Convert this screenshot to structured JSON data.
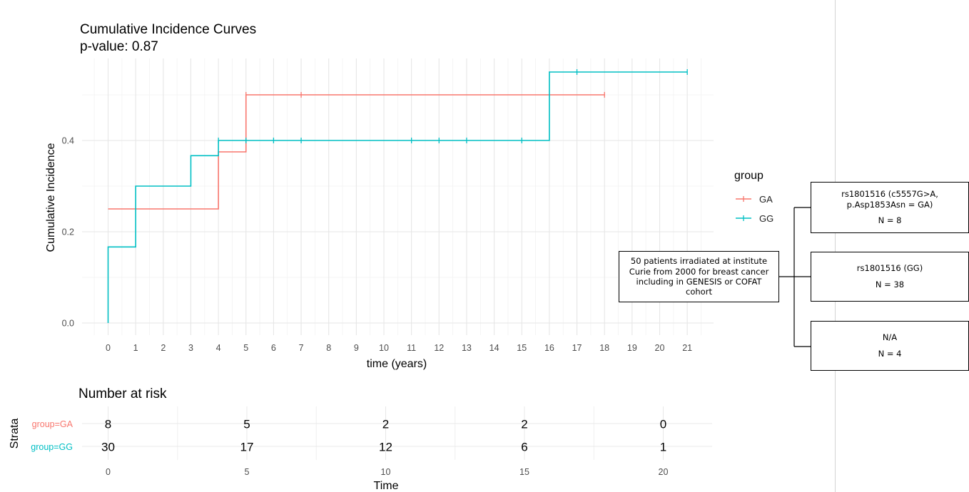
{
  "chart_data": [
    {
      "type": "line",
      "subtype": "step",
      "title": "Cumulative Incidence Curves",
      "subtitle": "p-value: 0.87",
      "xlabel": "time (years)",
      "ylabel": "Cumulative Incidence",
      "xlim": [
        0,
        21
      ],
      "ylim": [
        0,
        0.55
      ],
      "x_ticks": [
        "0",
        "1",
        "2",
        "3",
        "4",
        "5",
        "6",
        "7",
        "8",
        "9",
        "10",
        "11",
        "12",
        "13",
        "14",
        "15",
        "16",
        "17",
        "18",
        "19",
        "20",
        "21"
      ],
      "y_ticks": [
        "0.0",
        "0.2",
        "0.4"
      ],
      "grid": true,
      "legend": {
        "title": "group",
        "position": "right",
        "entries": [
          "GA",
          "GG"
        ]
      },
      "series": [
        {
          "name": "GA",
          "color": "#F8766D",
          "steps": [
            [
              0,
              0.25
            ],
            [
              4,
              0.375
            ],
            [
              5,
              0.5
            ],
            [
              18,
              0.5
            ]
          ],
          "censor_x": [
            5,
            7,
            18
          ],
          "censor_y": [
            0.5,
            0.5,
            0.5
          ]
        },
        {
          "name": "GG",
          "color": "#00BFC4",
          "start": [
            0,
            0.0
          ],
          "steps": [
            [
              0,
              0.1667
            ],
            [
              1,
              0.3
            ],
            [
              3,
              0.3667
            ],
            [
              4,
              0.4
            ],
            [
              16,
              0.55
            ],
            [
              21,
              0.55
            ]
          ],
          "censor_x": [
            4,
            5,
            6,
            7,
            11,
            12,
            13,
            15,
            17,
            21
          ],
          "censor_y": [
            0.4,
            0.4,
            0.4,
            0.4,
            0.4,
            0.4,
            0.4,
            0.4,
            0.55,
            0.55
          ]
        }
      ]
    },
    {
      "type": "table",
      "title": "Number at risk",
      "ylabel": "Strata",
      "xlabel": "Time",
      "x_ticks": [
        "0",
        "5",
        "10",
        "15",
        "20"
      ],
      "time_points": [
        0,
        5,
        10,
        15,
        20
      ],
      "rows": [
        {
          "label": "group=GA",
          "color": "#F8766D",
          "values": [
            "8",
            "5",
            "2",
            "2",
            "0"
          ]
        },
        {
          "label": "group=GG",
          "color": "#00BFC4",
          "values": [
            "30",
            "17",
            "12",
            "6",
            "1"
          ]
        }
      ]
    }
  ],
  "flow_diagram": {
    "root": {
      "lines": [
        "50 patients irradiated at institute",
        "Curie from 2000 for breast cancer",
        "including in GENESIS or COFAT",
        "cohort"
      ]
    },
    "children": [
      {
        "lines": [
          "rs1801516 (c5557G>A,",
          "p.Asp1853Asn = GA)"
        ],
        "n": "N = 8"
      },
      {
        "lines": [
          "rs1801516 (GG)"
        ],
        "n": "N = 38"
      },
      {
        "lines": [
          "N/A"
        ],
        "n": "N = 4"
      }
    ]
  }
}
